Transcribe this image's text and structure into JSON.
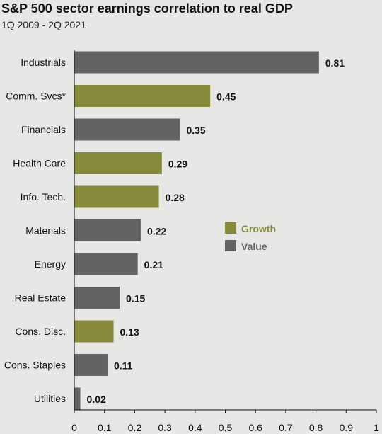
{
  "chart_data": {
    "type": "bar",
    "orientation": "horizontal",
    "title": "S&P 500 sector earnings correlation to real GDP",
    "subtitle": "1Q 2009 - 2Q 2021",
    "categories": [
      "Industrials",
      "Comm. Svcs*",
      "Financials",
      "Health Care",
      "Info. Tech.",
      "Materials",
      "Energy",
      "Real Estate",
      "Cons. Disc.",
      "Cons. Staples",
      "Utilities"
    ],
    "values": [
      0.81,
      0.45,
      0.35,
      0.29,
      0.28,
      0.22,
      0.21,
      0.15,
      0.13,
      0.11,
      0.02
    ],
    "value_labels": [
      "0.81",
      "0.45",
      "0.35",
      "0.29",
      "0.28",
      "0.22",
      "0.21",
      "0.15",
      "0.13",
      "0.11",
      "0.02"
    ],
    "groups": [
      "Value",
      "Growth",
      "Value",
      "Growth",
      "Growth",
      "Value",
      "Value",
      "Value",
      "Growth",
      "Value",
      "Value"
    ],
    "xlim": [
      0,
      1
    ],
    "xticks": [
      0,
      0.1,
      0.2,
      0.3,
      0.4,
      0.5,
      0.6,
      0.7,
      0.8,
      0.9,
      1
    ],
    "xtick_labels": [
      "0",
      "0.1",
      "0.2",
      "0.3",
      "0.4",
      "0.5",
      "0.6",
      "0.7",
      "0.8",
      "0.9",
      "1"
    ],
    "xlabel": "",
    "ylabel": "",
    "grid": false,
    "legend": {
      "placement": "center-right",
      "entries": [
        {
          "name": "Growth",
          "color": "#878a3a"
        },
        {
          "name": "Value",
          "color": "#636363"
        }
      ]
    },
    "colors": {
      "Growth": "#878a3a",
      "Value": "#636363",
      "background": "#e7e7e6",
      "axis": "#111111"
    }
  }
}
